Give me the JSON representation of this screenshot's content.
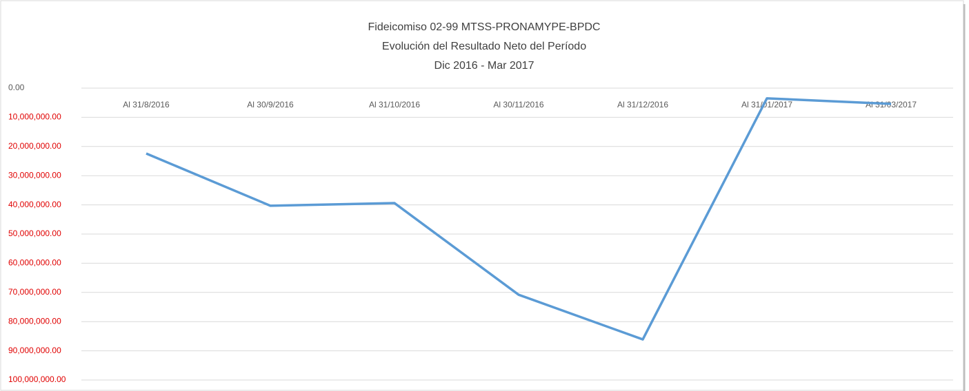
{
  "chart_data": {
    "type": "line",
    "title": [
      "Fideicomiso 02-99 MTSS-PRONAMYPE-BPDC",
      "Evolución del Resultado Neto del Período",
      "Dic 2016 - Mar 2017"
    ],
    "categories": [
      "Al 31/8/2016",
      "Al 30/9/2016",
      "Al 31/10/2016",
      "Al 30/11/2016",
      "Al 31/12/2016",
      "Al 31/01/2017",
      "Al 31/03/2017"
    ],
    "series": [
      {
        "color": "#5b9bd5",
        "values": [
          -22400000,
          -40300000,
          -39400000,
          -70800000,
          -86100000,
          -3500000,
          -5400000
        ]
      }
    ],
    "ylim": [
      -100000000,
      0
    ],
    "yticks": [
      {
        "value": 0,
        "label": "0.00"
      },
      {
        "value": -10000000,
        "label": "10,000,000.00"
      },
      {
        "value": -20000000,
        "label": "20,000,000.00"
      },
      {
        "value": -30000000,
        "label": "30,000,000.00"
      },
      {
        "value": -40000000,
        "label": "40,000,000.00"
      },
      {
        "value": -50000000,
        "label": "50,000,000.00"
      },
      {
        "value": -60000000,
        "label": "60,000,000.00"
      },
      {
        "value": -70000000,
        "label": "70,000,000.00"
      },
      {
        "value": -80000000,
        "label": "80,000,000.00"
      },
      {
        "value": -90000000,
        "label": "90,000,000.00"
      },
      {
        "value": -100000000,
        "label": "100,000,000.00"
      }
    ],
    "grid": true
  }
}
